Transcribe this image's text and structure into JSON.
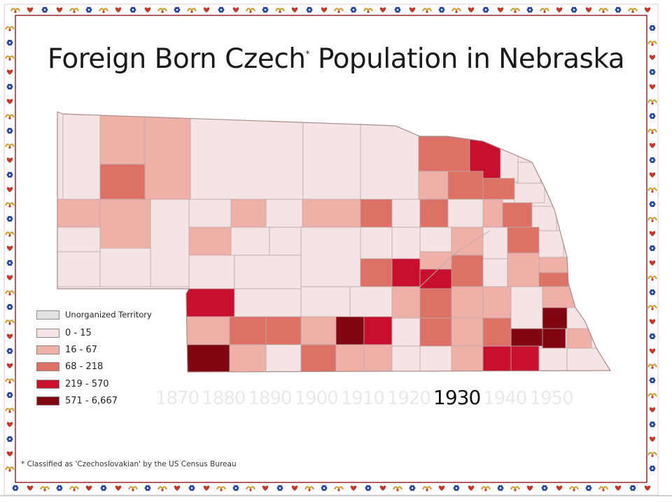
{
  "title": {
    "main": "Foreign Born Czech",
    "marker": "*",
    "rest": "Population in Nebraska"
  },
  "colors": {
    "unorganized": "#e2e2e4",
    "c0": "#f5e4e4",
    "c1": "#efb0a8",
    "c2": "#de7166",
    "c3": "#c8102e",
    "c4": "#800612",
    "border_line": "#bba9a9",
    "frame_red": "#c0392b",
    "frame_blue": "#2b4a9c",
    "frame_gold": "#c99a2e"
  },
  "legend": [
    {
      "label": "Unorganized Territory",
      "color": "#e2e2e4"
    },
    {
      "label": "0 - 15",
      "color": "#f5e4e4"
    },
    {
      "label": "16 - 67",
      "color": "#efb0a8"
    },
    {
      "label": "68 - 218",
      "color": "#de7166"
    },
    {
      "label": "219 - 570",
      "color": "#c8102e"
    },
    {
      "label": "571 - 6,667",
      "color": "#800612"
    }
  ],
  "timeline": {
    "years": [
      "1870",
      "1880",
      "1890",
      "1900",
      "1910",
      "1920",
      "1930",
      "1940",
      "1950"
    ],
    "active": "1930"
  },
  "footnote": "* Classified as 'Czechoslovakian' by the US Census Bureau",
  "map_classes": [
    0,
    1,
    1,
    0,
    0,
    0,
    2,
    3,
    2,
    1,
    2,
    0,
    0,
    2,
    0,
    1,
    1,
    0,
    1,
    2,
    0,
    0,
    1,
    0,
    1,
    2,
    0,
    2,
    0,
    0,
    1,
    0,
    0,
    0,
    0,
    0,
    0,
    1,
    0,
    2,
    0,
    0,
    0,
    0,
    0,
    2,
    3,
    1,
    2,
    3,
    0,
    1,
    1,
    2,
    3,
    0,
    0,
    0,
    1,
    2,
    1,
    1,
    0,
    1,
    1,
    2,
    2,
    1,
    4,
    3,
    0,
    2,
    1,
    1,
    4,
    4,
    4,
    4,
    1,
    0,
    2,
    1,
    1,
    1,
    0,
    1,
    3,
    3,
    0,
    1,
    0,
    0,
    0,
    0,
    2,
    2,
    3,
    4,
    3,
    1,
    0,
    0,
    0,
    0,
    0,
    0,
    1,
    2,
    1,
    1,
    1,
    2,
    0,
    1,
    2,
    3,
    1
  ]
}
